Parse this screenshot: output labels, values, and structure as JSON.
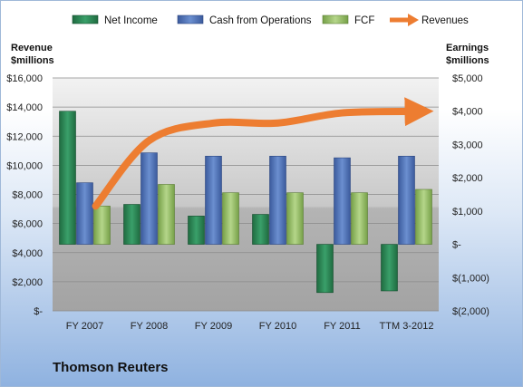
{
  "company": "Thomson Reuters",
  "chart_data": {
    "type": "bar",
    "categories": [
      "FY 2007",
      "FY 2008",
      "FY 2009",
      "FY 2010",
      "FY 2011",
      "TTM 3-2012"
    ],
    "left_axis": {
      "label_line1": "Revenue",
      "label_line2": "$millions",
      "ylim": [
        0,
        16000
      ],
      "ticks": [
        "$-",
        "$2,000",
        "$4,000",
        "$6,000",
        "$8,000",
        "$10,000",
        "$12,000",
        "$14,000",
        "$16,000"
      ]
    },
    "right_axis": {
      "label_line1": "Earnings",
      "label_line2": "$millions",
      "ylim": [
        -2000,
        5000
      ],
      "ticks": [
        "$(2,000)",
        "$(1,000)",
        "$-",
        "$1,000",
        "$2,000",
        "$3,000",
        "$4,000",
        "$5,000"
      ]
    },
    "series": [
      {
        "name": "Net Income",
        "type": "bar",
        "axis": "right",
        "color": "#2e8b57",
        "values": [
          4000,
          1200,
          850,
          900,
          -1450,
          -1400
        ]
      },
      {
        "name": "Cash from Operations",
        "type": "bar",
        "axis": "right",
        "color": "#4f73b8",
        "values": [
          1850,
          2750,
          2650,
          2650,
          2600,
          2650
        ]
      },
      {
        "name": "FCF",
        "type": "bar",
        "axis": "right",
        "color": "#98c064",
        "values": [
          1150,
          1800,
          1550,
          1550,
          1550,
          1650
        ]
      },
      {
        "name": "Revenues",
        "type": "line",
        "axis": "left",
        "color": "#ed7d31",
        "values": [
          7300,
          11700,
          12900,
          12900,
          13600,
          13700
        ]
      }
    ],
    "legend_position": "top",
    "grid": true
  }
}
